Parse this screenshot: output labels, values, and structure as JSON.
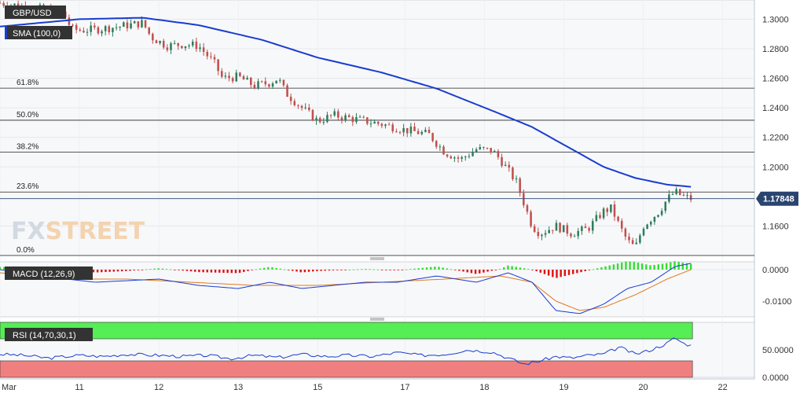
{
  "chart_data": {
    "type": "candlestick",
    "symbol": "GBP/USD",
    "overlay_label": "SMA (100,0)",
    "last_price": "1.17848",
    "watermark": {
      "fx": "FX",
      "street": "STREET"
    },
    "colors": {
      "up": "#2e7d5b",
      "down": "#c0504d",
      "sma": "#1a3ccf",
      "macd_line": "#1a3ccf",
      "signal_line": "#e07a1f",
      "hist_pos": "#33dd33",
      "hist_neg": "#e01010",
      "rsi_line": "#1a3ccf",
      "rsi_over": "#55ee55",
      "rsi_under": "#f08080",
      "label_bg": "#333333",
      "price_tag": "#2a4470"
    },
    "x_axis": {
      "ticks": [
        "Mar",
        "11",
        "12",
        "13",
        "15",
        "17",
        "18",
        "19",
        "20",
        "22"
      ],
      "tick_pos": [
        0,
        10,
        20,
        30,
        40,
        51,
        61,
        71,
        81,
        91
      ],
      "bar_min": 0,
      "bar_max": 95
    },
    "price": {
      "ylim": [
        1.14,
        1.313
      ],
      "ticks": [
        "1.3000",
        "1.2800",
        "1.2600",
        "1.2400",
        "1.2200",
        "1.2000",
        "1.1600"
      ],
      "tick_values": [
        1.3,
        1.28,
        1.26,
        1.24,
        1.22,
        1.2,
        1.16
      ],
      "fibonacci": [
        {
          "label": "61.8%",
          "value": 1.2533
        },
        {
          "label": "50.0%",
          "value": 1.2316
        },
        {
          "label": "38.2%",
          "value": 1.21
        },
        {
          "label": "23.6%",
          "value": 1.183
        },
        {
          "label": "0.0%",
          "value": 1.14
        }
      ],
      "close_anchors": [
        [
          0,
          1.311
        ],
        [
          4,
          1.308
        ],
        [
          8,
          1.304
        ],
        [
          9,
          1.2935
        ],
        [
          10,
          1.2925
        ],
        [
          12,
          1.293
        ],
        [
          15,
          1.295
        ],
        [
          18,
          1.2975
        ],
        [
          19,
          1.288
        ],
        [
          21,
          1.282
        ],
        [
          23,
          1.283
        ],
        [
          25,
          1.282
        ],
        [
          27,
          1.27
        ],
        [
          28,
          1.26
        ],
        [
          30,
          1.261
        ],
        [
          32,
          1.255
        ],
        [
          34,
          1.257
        ],
        [
          35,
          1.26
        ],
        [
          36,
          1.25
        ],
        [
          38,
          1.24
        ],
        [
          40,
          1.231
        ],
        [
          42,
          1.235
        ],
        [
          45,
          1.232
        ],
        [
          48,
          1.229
        ],
        [
          51,
          1.225
        ],
        [
          54,
          1.222
        ],
        [
          56,
          1.21
        ],
        [
          58,
          1.205
        ],
        [
          60,
          1.212
        ],
        [
          62,
          1.211
        ],
        [
          63,
          1.205
        ],
        [
          65,
          1.19
        ],
        [
          66,
          1.175
        ],
        [
          67,
          1.16
        ],
        [
          68,
          1.155
        ],
        [
          70,
          1.16
        ],
        [
          72,
          1.155
        ],
        [
          74,
          1.158
        ],
        [
          76,
          1.17
        ],
        [
          77,
          1.172
        ],
        [
          78,
          1.16
        ],
        [
          79,
          1.15
        ],
        [
          80,
          1.145
        ],
        [
          81,
          1.16
        ],
        [
          83,
          1.17
        ],
        [
          84,
          1.178
        ],
        [
          85,
          1.183
        ],
        [
          86,
          1.18
        ],
        [
          87,
          1.1785
        ]
      ],
      "sma_anchors": [
        [
          0,
          1.295
        ],
        [
          10,
          1.3
        ],
        [
          18,
          1.301
        ],
        [
          25,
          1.296
        ],
        [
          33,
          1.286
        ],
        [
          40,
          1.274
        ],
        [
          48,
          1.264
        ],
        [
          55,
          1.253
        ],
        [
          62,
          1.238
        ],
        [
          67,
          1.227
        ],
        [
          72,
          1.212
        ],
        [
          76,
          1.2
        ],
        [
          80,
          1.1925
        ],
        [
          84,
          1.188
        ],
        [
          87,
          1.1865
        ]
      ]
    },
    "macd": {
      "label": "MACD (12,26,9)",
      "ylim": [
        -0.015,
        0.0025
      ],
      "ticks": [
        "0.0000",
        "-0.0100"
      ],
      "tick_values": [
        0.0,
        -0.01
      ],
      "macd_anchors": [
        [
          0,
          0.0
        ],
        [
          5,
          -0.002
        ],
        [
          12,
          -0.004
        ],
        [
          20,
          -0.003
        ],
        [
          25,
          -0.005
        ],
        [
          30,
          -0.006
        ],
        [
          34,
          -0.004
        ],
        [
          38,
          -0.006
        ],
        [
          42,
          -0.005
        ],
        [
          46,
          -0.004
        ],
        [
          50,
          -0.004
        ],
        [
          55,
          -0.002
        ],
        [
          60,
          -0.004
        ],
        [
          64,
          -0.001
        ],
        [
          67,
          -0.004
        ],
        [
          70,
          -0.013
        ],
        [
          73,
          -0.014
        ],
        [
          76,
          -0.011
        ],
        [
          79,
          -0.006
        ],
        [
          82,
          -0.004
        ],
        [
          85,
          0.001
        ],
        [
          87,
          0.002
        ]
      ],
      "signal_anchors": [
        [
          0,
          -0.001
        ],
        [
          8,
          -0.003
        ],
        [
          16,
          -0.003
        ],
        [
          24,
          -0.004
        ],
        [
          32,
          -0.005
        ],
        [
          40,
          -0.005
        ],
        [
          48,
          -0.004
        ],
        [
          56,
          -0.003
        ],
        [
          63,
          -0.002
        ],
        [
          67,
          -0.004
        ],
        [
          70,
          -0.01
        ],
        [
          73,
          -0.013
        ],
        [
          76,
          -0.012
        ],
        [
          80,
          -0.008
        ],
        [
          84,
          -0.003
        ],
        [
          87,
          0.0
        ]
      ]
    },
    "rsi": {
      "label": "RSI (14,70,30,1)",
      "ylim": [
        0,
        100
      ],
      "overbought": 70,
      "oversold": 30,
      "ticks": [
        "50.0000",
        "0.0000"
      ],
      "tick_values": [
        50,
        0
      ],
      "anchors": [
        [
          0,
          42
        ],
        [
          3,
          40
        ],
        [
          6,
          35
        ],
        [
          10,
          40
        ],
        [
          13,
          38
        ],
        [
          16,
          42
        ],
        [
          20,
          40
        ],
        [
          23,
          38
        ],
        [
          26,
          40
        ],
        [
          29,
          34
        ],
        [
          32,
          40
        ],
        [
          35,
          36
        ],
        [
          38,
          42
        ],
        [
          41,
          38
        ],
        [
          44,
          40
        ],
        [
          47,
          38
        ],
        [
          50,
          45
        ],
        [
          53,
          40
        ],
        [
          56,
          42
        ],
        [
          59,
          50
        ],
        [
          62,
          46
        ],
        [
          64,
          35
        ],
        [
          66,
          24
        ],
        [
          68,
          30
        ],
        [
          70,
          38
        ],
        [
          72,
          35
        ],
        [
          74,
          40
        ],
        [
          76,
          42
        ],
        [
          78,
          55
        ],
        [
          80,
          42
        ],
        [
          82,
          50
        ],
        [
          84,
          62
        ],
        [
          85,
          72
        ],
        [
          86,
          62
        ],
        [
          87,
          58
        ]
      ]
    }
  }
}
